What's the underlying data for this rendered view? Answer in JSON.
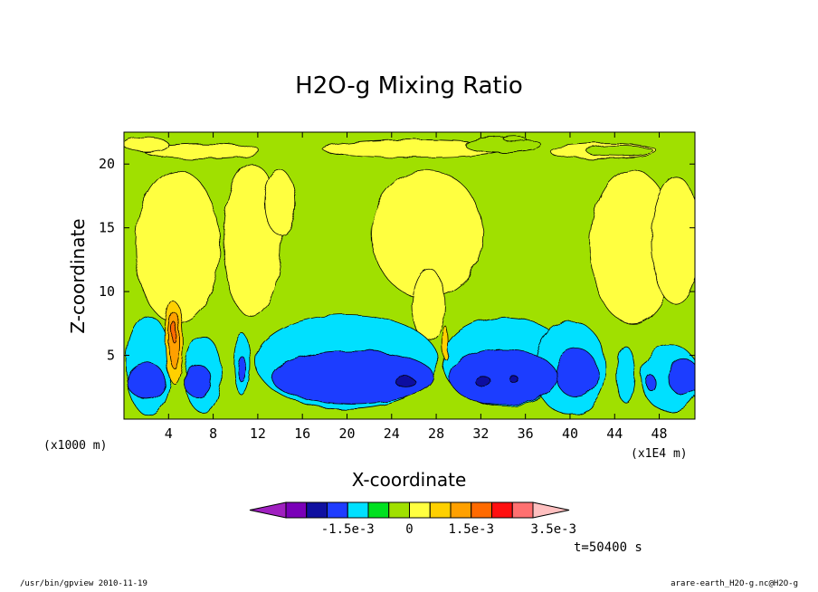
{
  "chart_data": {
    "type": "contour",
    "title": "H2O-g Mixing Ratio",
    "xlabel": "X-coordinate",
    "ylabel": "Z-coordinate",
    "x_unit": "(x1000 m)",
    "x_scale_note": "(x1E4 m)",
    "time_label": "t=50400 s",
    "xlim": [
      0,
      51.2
    ],
    "ylim": [
      0,
      22.5
    ],
    "x_ticks": [
      4,
      8,
      12,
      16,
      20,
      24,
      28,
      32,
      36,
      40,
      44,
      48
    ],
    "x_tick_labels": [
      "4",
      "8",
      "12",
      "16",
      "20",
      "24",
      "28",
      "32",
      "36",
      "40",
      "44",
      "48"
    ],
    "y_ticks": [
      5,
      10,
      15,
      20
    ],
    "y_tick_labels": [
      "5",
      "10",
      "15",
      "20"
    ],
    "colorbar": {
      "levels": [
        "-2.5e-3",
        "-2e-3",
        "-1.5e-3",
        "-1e-3",
        "-5e-4",
        "0",
        "5e-4",
        "1e-3",
        "1.5e-3",
        "2e-3",
        "2.5e-3",
        "3e-3",
        "3.5e-3"
      ],
      "labels": [
        "-1.5e-3",
        "0",
        "1.5e-3",
        "3.5e-3"
      ],
      "colors": [
        "#a020c0",
        "#7a00b8",
        "#1010a0",
        "#1e3cff",
        "#00e0ff",
        "#00e020",
        "#a0e000",
        "#ffff40",
        "#ffd000",
        "#ffa000",
        "#ff6a00",
        "#ff1010",
        "#ff7070",
        "#ffc0c0"
      ]
    },
    "bands": [
      {
        "level": "-2e-3",
        "color": "#1010a0",
        "regions": [
          {
            "x": 25.2,
            "z": 2.95,
            "rx": 0.9,
            "rz": 0.35
          },
          {
            "x": 32.2,
            "z": 2.95,
            "rx": 0.7,
            "rz": 0.4
          },
          {
            "x": 35.0,
            "z": 3.1,
            "rx": 0.4,
            "rz": 0.25
          }
        ]
      },
      {
        "level": "-1e-3",
        "color": "#1e3cff",
        "regions": [
          {
            "x": 2.0,
            "z": 3.0,
            "rx": 1.7,
            "rz": 1.4
          },
          {
            "x": 6.6,
            "z": 3.0,
            "rx": 1.2,
            "rz": 1.3
          },
          {
            "x": 10.6,
            "z": 3.9,
            "rx": 0.4,
            "rz": 1.0
          },
          {
            "x": 20.5,
            "z": 3.3,
            "rx": 7.3,
            "rz": 2.1
          },
          {
            "x": 34.0,
            "z": 3.3,
            "rx": 4.8,
            "rz": 2.2
          },
          {
            "x": 40.6,
            "z": 3.6,
            "rx": 1.9,
            "rz": 1.9
          },
          {
            "x": 47.2,
            "z": 2.9,
            "rx": 0.4,
            "rz": 0.6
          },
          {
            "x": 50.2,
            "z": 3.3,
            "rx": 1.4,
            "rz": 1.4
          }
        ]
      },
      {
        "level": "-5e-4",
        "color": "#00e0ff",
        "regions": [
          {
            "x": 2.2,
            "z": 4.2,
            "rx": 2.0,
            "rz": 3.9
          },
          {
            "x": 7.1,
            "z": 3.5,
            "rx": 1.6,
            "rz": 3.0
          },
          {
            "x": 10.6,
            "z": 4.3,
            "rx": 0.8,
            "rz": 2.4
          },
          {
            "x": 20.0,
            "z": 4.5,
            "rx": 8.2,
            "rz": 3.7
          },
          {
            "x": 34.2,
            "z": 4.5,
            "rx": 5.6,
            "rz": 3.5
          },
          {
            "x": 40.0,
            "z": 4.0,
            "rx": 3.2,
            "rz": 3.7
          },
          {
            "x": 45.0,
            "z": 3.5,
            "rx": 0.8,
            "rz": 2.2
          },
          {
            "x": 49.0,
            "z": 3.2,
            "rx": 2.6,
            "rz": 2.6
          }
        ]
      }
    ],
    "dry_upper": [
      {
        "x": 4.8,
        "z": 13.5,
        "rx": 3.8,
        "rz": 6.0
      },
      {
        "x": 11.5,
        "z": 14.0,
        "rx": 2.6,
        "rz": 6.0
      },
      {
        "x": 14.0,
        "z": 17.0,
        "rx": 1.4,
        "rz": 2.5
      },
      {
        "x": 27.2,
        "z": 14.5,
        "rx": 5.0,
        "rz": 5.0
      },
      {
        "x": 27.3,
        "z": 9.0,
        "rx": 1.5,
        "rz": 2.8
      },
      {
        "x": 45.6,
        "z": 13.5,
        "rx": 3.8,
        "rz": 6.0
      },
      {
        "x": 49.5,
        "z": 14.0,
        "rx": 2.2,
        "rz": 5.0
      },
      {
        "x": 26.0,
        "z": 21.2,
        "rx": 8.2,
        "rz": 0.7
      },
      {
        "x": 7.0,
        "z": 21.0,
        "rx": 5.2,
        "rz": 0.6
      },
      {
        "x": 43.0,
        "z": 21.0,
        "rx": 4.8,
        "rz": 0.6
      },
      {
        "x": 2.0,
        "z": 21.5,
        "rx": 2.0,
        "rz": 0.6
      }
    ],
    "top_green": [
      {
        "x": 34.0,
        "z": 21.5,
        "rx": 3.4,
        "rz": 0.6
      },
      {
        "x": 44.5,
        "z": 21.0,
        "rx": 3.0,
        "rz": 0.4
      },
      {
        "x": 35.0,
        "z": 22.0,
        "rx": 1.0,
        "rz": 0.2
      }
    ],
    "moist_column": [
      {
        "x": 4.5,
        "z": 6.0,
        "rx": 0.8,
        "rz": 3.2,
        "color": "#ffd000"
      },
      {
        "x": 4.5,
        "z": 6.2,
        "rx": 0.5,
        "rz": 2.2,
        "color": "#ffa000"
      },
      {
        "x": 4.5,
        "z": 6.8,
        "rx": 0.22,
        "rz": 0.8,
        "color": "#ff6a00"
      },
      {
        "x": 28.8,
        "z": 6.0,
        "rx": 0.3,
        "rz": 1.3,
        "color": "#ffd000"
      }
    ]
  },
  "footer": {
    "left": "/usr/bin/gpview  2010-11-19",
    "right": "arare-earth_H2O-g.nc@H2O-g"
  }
}
